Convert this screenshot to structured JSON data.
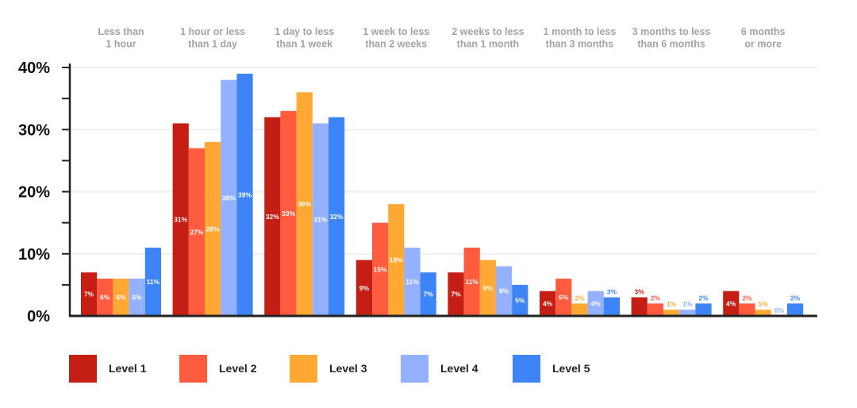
{
  "chart_data": {
    "type": "bar",
    "categories": [
      [
        "Less than",
        "1 hour"
      ],
      [
        "1 hour or less",
        "than 1 day"
      ],
      [
        "1 day to less",
        "than 1 week"
      ],
      [
        "1 week to less",
        "than 2 weeks"
      ],
      [
        "2 weeks to less",
        "than 1 month"
      ],
      [
        "1 month to less",
        "than 3 months"
      ],
      [
        "3 months to less",
        "than 6 months"
      ],
      [
        "6 months",
        "or more"
      ]
    ],
    "series": [
      {
        "name": "Level 1",
        "color": "#C41E15",
        "values": [
          7,
          31,
          32,
          9,
          7,
          4,
          3,
          4
        ]
      },
      {
        "name": "Level 2",
        "color": "#FF5B3E",
        "values": [
          6,
          27,
          33,
          15,
          11,
          6,
          2,
          2
        ]
      },
      {
        "name": "Level 3",
        "color": "#FFA833",
        "values": [
          6,
          28,
          36,
          18,
          9,
          2,
          1,
          1
        ]
      },
      {
        "name": "Level 4",
        "color": "#93B1FF",
        "values": [
          6,
          38,
          31,
          11,
          8,
          4,
          1,
          0
        ]
      },
      {
        "name": "Level 5",
        "color": "#3D85F7",
        "values": [
          11,
          39,
          32,
          7,
          5,
          3,
          2,
          2
        ]
      }
    ],
    "yticks": [
      "0%",
      "10%",
      "20%",
      "30%",
      "40%"
    ],
    "ylim": [
      0,
      40
    ],
    "grid": true,
    "category_labels_position": "top",
    "legend_position": "bottom",
    "title": "",
    "xlabel": "",
    "ylabel": ""
  }
}
